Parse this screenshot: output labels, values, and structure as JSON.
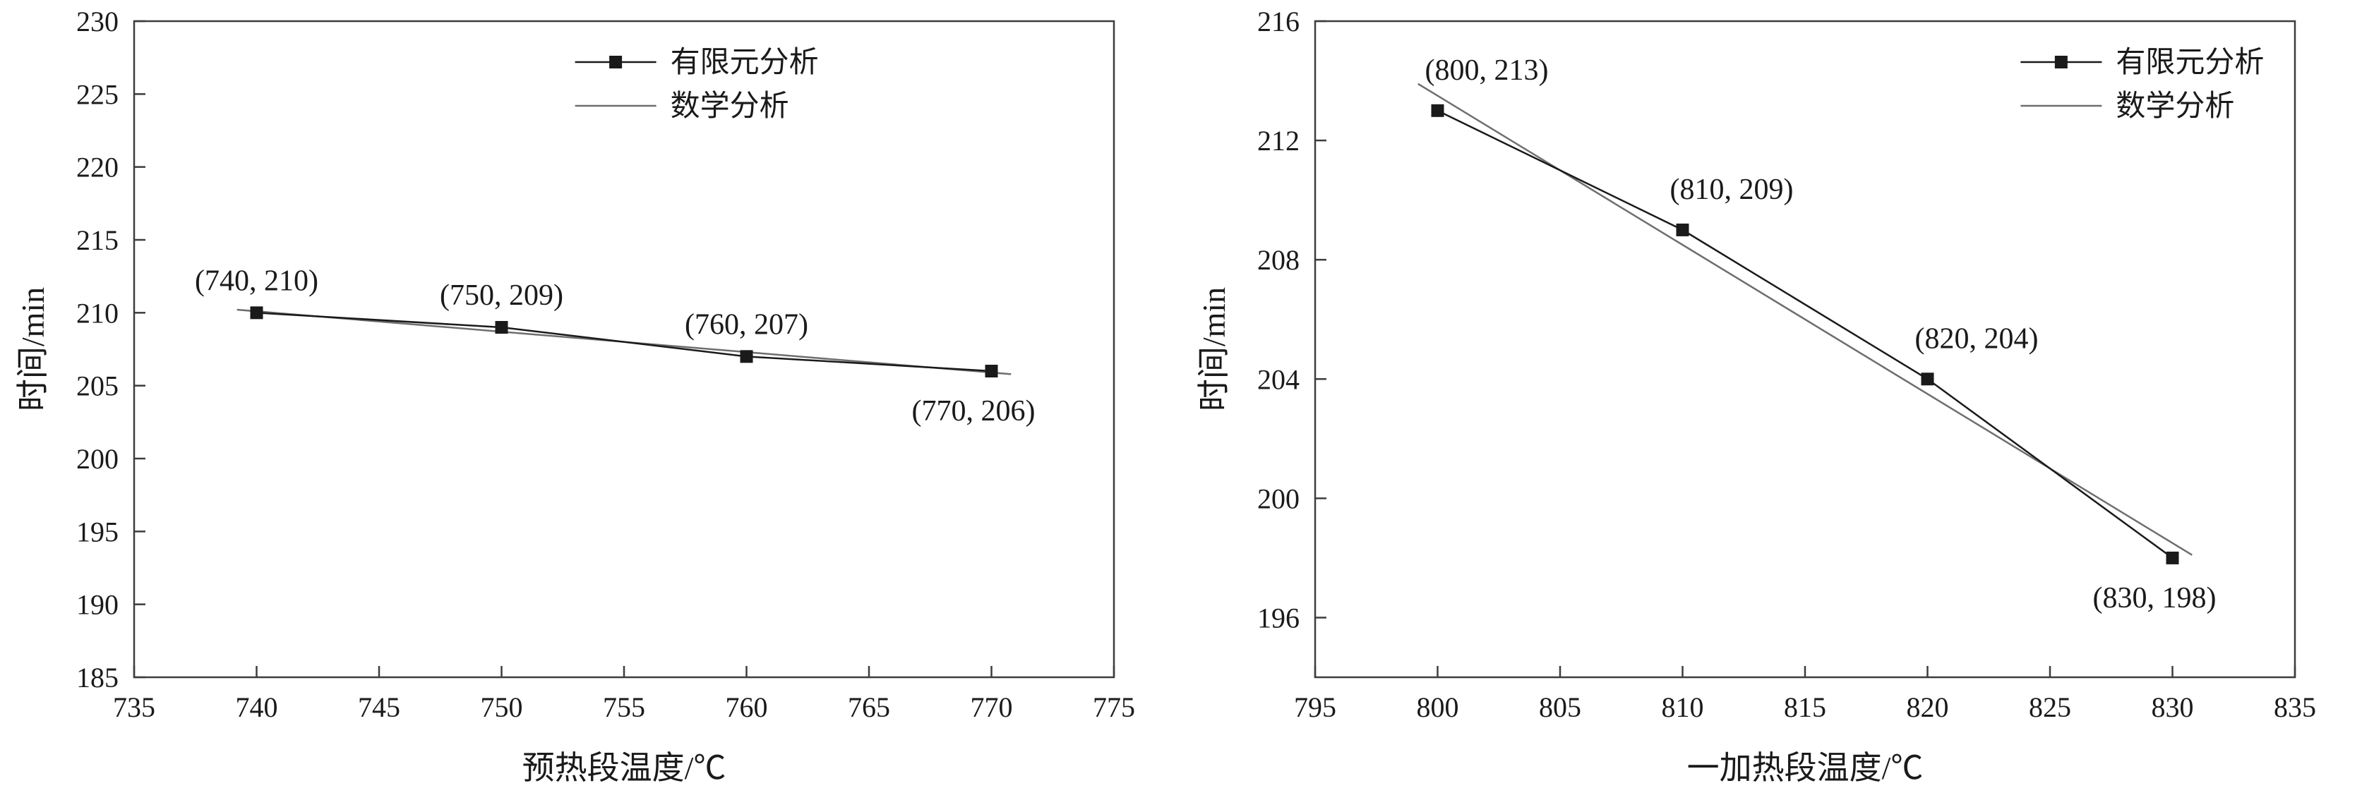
{
  "page": {
    "background": "#ffffff",
    "axis_color": "#3d3d3d",
    "text_color": "#1a1a1a"
  },
  "chart_data": [
    {
      "type": "line",
      "title": "",
      "xlabel": "预热段温度/℃",
      "ylabel": "时间/min",
      "xlim": [
        735,
        775
      ],
      "ylim": [
        185,
        230
      ],
      "xticks": [
        735,
        740,
        745,
        750,
        755,
        760,
        765,
        770,
        775
      ],
      "yticks": [
        185,
        190,
        195,
        200,
        205,
        210,
        215,
        220,
        225,
        230
      ],
      "grid": false,
      "legend": {
        "position": "top-right-inside",
        "x_fraction": 0.45,
        "entries": [
          {
            "label": "有限元分析",
            "style": "line-with-square-marker",
            "color": "#1a1a1a"
          },
          {
            "label": "数学分析",
            "style": "line",
            "color": "#6e6e6e"
          }
        ]
      },
      "series": [
        {
          "name": "有限元分析",
          "type": "line+marker",
          "marker": "square",
          "color": "#1a1a1a",
          "points": [
            [
              740,
              210
            ],
            [
              750,
              209
            ],
            [
              760,
              207
            ],
            [
              770,
              206
            ]
          ]
        },
        {
          "name": "数学分析",
          "type": "linear-fit",
          "color": "#6e6e6e",
          "fit_of_series": 0
        }
      ],
      "point_labels": [
        {
          "text": "(740, 210)",
          "x": 740,
          "y": 210,
          "position": "above"
        },
        {
          "text": "(750, 209)",
          "x": 750,
          "y": 209,
          "position": "above"
        },
        {
          "text": "(760, 207)",
          "x": 760,
          "y": 207,
          "position": "above"
        },
        {
          "text": "(770, 206)",
          "x": 770,
          "y": 206,
          "position": "below-left"
        }
      ]
    },
    {
      "type": "line",
      "title": "",
      "xlabel": "一加热段温度/℃",
      "ylabel": "时间/min",
      "xlim": [
        795,
        835
      ],
      "ylim": [
        194,
        216
      ],
      "xticks": [
        795,
        800,
        805,
        810,
        815,
        820,
        825,
        830,
        835
      ],
      "yticks": [
        196,
        200,
        204,
        208,
        212,
        216
      ],
      "grid": false,
      "legend": {
        "position": "top-right-inside",
        "x_fraction": 0.72,
        "entries": [
          {
            "label": "有限元分析",
            "style": "line-with-square-marker",
            "color": "#1a1a1a"
          },
          {
            "label": "数学分析",
            "style": "line",
            "color": "#6e6e6e"
          }
        ]
      },
      "series": [
        {
          "name": "有限元分析",
          "type": "line+marker",
          "marker": "square",
          "color": "#1a1a1a",
          "points": [
            [
              800,
              213
            ],
            [
              810,
              209
            ],
            [
              820,
              204
            ],
            [
              830,
              198
            ]
          ]
        },
        {
          "name": "数学分析",
          "type": "linear-fit",
          "color": "#6e6e6e",
          "fit_of_series": 0
        }
      ],
      "point_labels": [
        {
          "text": "(800, 213)",
          "x": 800,
          "y": 213,
          "position": "above-right"
        },
        {
          "text": "(810, 209)",
          "x": 810,
          "y": 209,
          "position": "above-right"
        },
        {
          "text": "(820, 204)",
          "x": 820,
          "y": 204,
          "position": "above-right"
        },
        {
          "text": "(830, 198)",
          "x": 830,
          "y": 198,
          "position": "below-left"
        }
      ]
    }
  ]
}
